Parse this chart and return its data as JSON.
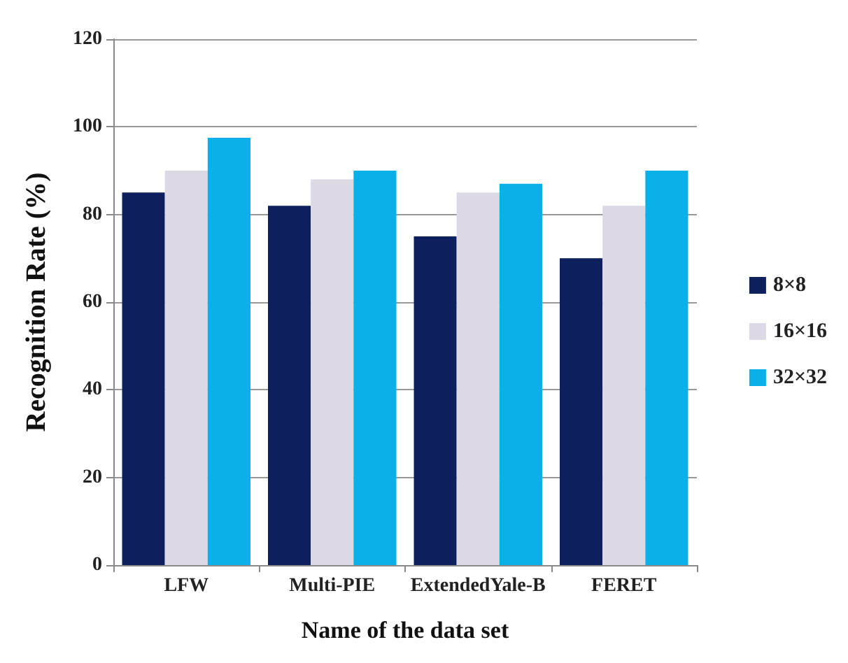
{
  "chart_data": {
    "type": "bar",
    "xlabel": "Name of the data set",
    "ylabel": "Recognition Rate (%)",
    "categories": [
      "LFW",
      "Multi-PIE",
      "ExtendedYale-B",
      "FERET"
    ],
    "series": [
      {
        "name": "8×8",
        "color": "#0d1f5c",
        "values": [
          85,
          82,
          75,
          70
        ]
      },
      {
        "name": "16×16",
        "color": "#dcd8e4",
        "values": [
          90,
          88,
          85,
          82
        ]
      },
      {
        "name": "32×32",
        "color": "#0bb0e8",
        "values": [
          97.5,
          90,
          87,
          90
        ]
      }
    ],
    "ylim": [
      0,
      120
    ],
    "yticks": [
      0,
      20,
      40,
      60,
      80,
      100,
      120
    ],
    "grid": "y",
    "legend": "right"
  }
}
